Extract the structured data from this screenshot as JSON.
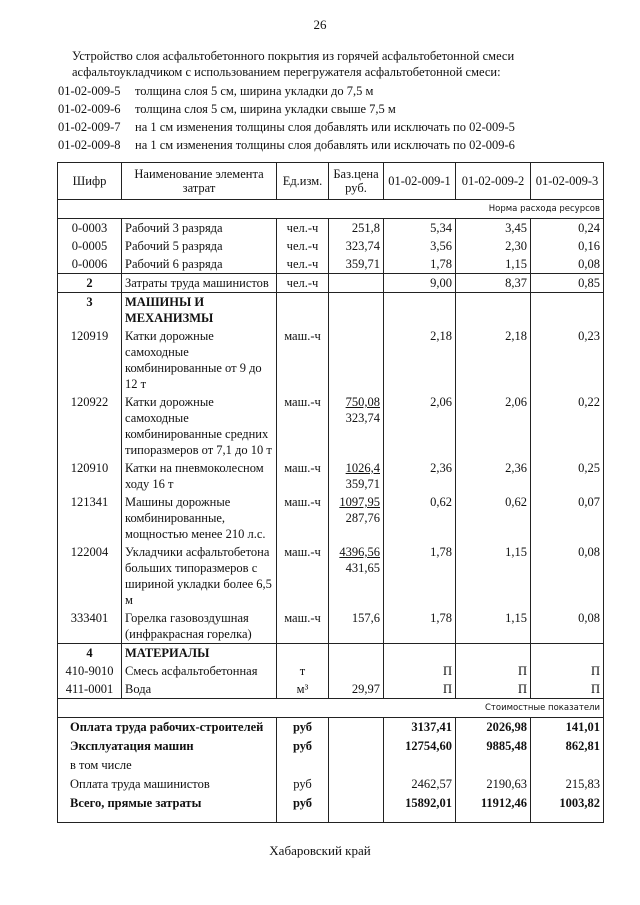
{
  "page_number": "26",
  "intro": {
    "line1": "Устройство слоя асфальтобетонного покрытия из горячей асфальтобетонной смеси",
    "line2": "асфальтоукладчиком с использованием перегружателя асфальтобетонной смеси:"
  },
  "specs": [
    {
      "code": "01-02-009-5",
      "text": "толщина слоя  5 см, ширина укладки до 7,5 м"
    },
    {
      "code": "01-02-009-6",
      "text": "толщина слоя  5 см, ширина укладки свыше 7,5 м"
    },
    {
      "code": "01-02-009-7",
      "text": "на 1 см изменения толщины слоя добавлять или исключать по 02-009-5"
    },
    {
      "code": "01-02-009-8",
      "text": "на 1 см изменения толщины слоя добавлять или исключать по 02-009-6"
    }
  ],
  "table": {
    "headers": [
      "Шифр",
      "Наименование элемента затрат",
      "Ед.изм.",
      "Баз.цена руб.",
      "01-02-009-1",
      "01-02-009-2",
      "01-02-009-3"
    ],
    "norm_band": "Норма расхода ресурсов",
    "cost_band": "Стоимостные показатели",
    "rows": [
      {
        "code": "0-0003",
        "name": "Рабочий 3 разряда",
        "unit": "чел.-ч",
        "price": "251,8",
        "v": [
          "5,34",
          "3,45",
          "0,24"
        ],
        "gtop": true
      },
      {
        "code": "0-0005",
        "name": "Рабочий 5 разряда",
        "unit": "чел.-ч",
        "price": "323,74",
        "v": [
          "3,56",
          "2,30",
          "0,16"
        ]
      },
      {
        "code": "0-0006",
        "name": "Рабочий 6 разряда",
        "unit": "чел.-ч",
        "price": "359,71",
        "v": [
          "1,78",
          "1,15",
          "0,08"
        ]
      },
      {
        "code": "2",
        "name": "Затраты труда машинистов",
        "unit": "чел.-ч",
        "price": "",
        "v": [
          "9,00",
          "8,37",
          "0,85"
        ],
        "gtop": true,
        "boldcode": true
      },
      {
        "code": "3",
        "name": "МАШИНЫ И МЕХАНИЗМЫ",
        "unit": "",
        "price": "",
        "v": [
          "",
          "",
          ""
        ],
        "gtop": true,
        "boldcode": true,
        "boldname": true
      },
      {
        "code": "120919",
        "name": "Катки дорожные самоходные комбинированные от 9 до 12 т",
        "unit": "маш.-ч",
        "price": "",
        "v": [
          "2,18",
          "2,18",
          "0,23"
        ]
      },
      {
        "code": "120922",
        "name": "Катки дорожные самоходные комбинированные средних типоразмеров от 7,1 до 10 т",
        "unit": "маш.-ч",
        "price_top": "750,08",
        "price": "323,74",
        "v": [
          "2,06",
          "2,06",
          "0,22"
        ]
      },
      {
        "code": "120910",
        "name": "Катки на пневмоколесном ходу 16 т",
        "unit": "маш.-ч",
        "price_top": "1026,4",
        "price": "359,71",
        "v": [
          "2,36",
          "2,36",
          "0,25"
        ]
      },
      {
        "code": "121341",
        "name": "Машины дорожные комбинированные, мощностью менее 210 л.с.",
        "unit": "маш.-ч",
        "price_top": "1097,95",
        "price": "287,76",
        "v": [
          "0,62",
          "0,62",
          "0,07"
        ]
      },
      {
        "code": "122004",
        "name": "Укладчики асфальтобетона больших типоразмеров с шириной укладки более 6,5 м",
        "unit": "маш.-ч",
        "price_top": "4396,56",
        "price": "431,65",
        "v": [
          "1,78",
          "1,15",
          "0,08"
        ]
      },
      {
        "code": "333401",
        "name": "Горелка газовоздушная (инфракрасная горелка)",
        "unit": "маш.-ч",
        "price": "157,6",
        "v": [
          "1,78",
          "1,15",
          "0,08"
        ]
      },
      {
        "code": "4",
        "name": "МАТЕРИАЛЫ",
        "unit": "",
        "price": "",
        "v": [
          "",
          "",
          ""
        ],
        "gtop": true,
        "boldcode": true,
        "boldname": true
      },
      {
        "code": "410-9010",
        "name": "Смесь асфальтобетонная",
        "unit": "т",
        "price": "",
        "v": [
          "П",
          "П",
          "П"
        ]
      },
      {
        "code": "411-0001",
        "name": "Вода",
        "unit": "м³",
        "price": "29,97",
        "v": [
          "П",
          "П",
          "П"
        ]
      }
    ],
    "cost_rows": [
      {
        "label": "Оплата труда рабочих-строителей",
        "unit": "руб",
        "v": [
          "3137,41",
          "2026,98",
          "141,01"
        ],
        "bold": true
      },
      {
        "label": "Эксплуатация машин",
        "unit": "руб",
        "v": [
          "12754,60",
          "9885,48",
          "862,81"
        ],
        "bold": true
      },
      {
        "label": "в том числе",
        "unit": "",
        "v": [
          "",
          "",
          ""
        ]
      },
      {
        "label": "Оплата труда машинистов",
        "unit": "руб",
        "v": [
          "2462,57",
          "2190,63",
          "215,83"
        ]
      },
      {
        "label": "Всего, прямые затраты",
        "unit": "руб",
        "v": [
          "15892,01",
          "11912,46",
          "1003,82"
        ],
        "bold": true
      }
    ]
  },
  "footer": "Хабаровский край"
}
